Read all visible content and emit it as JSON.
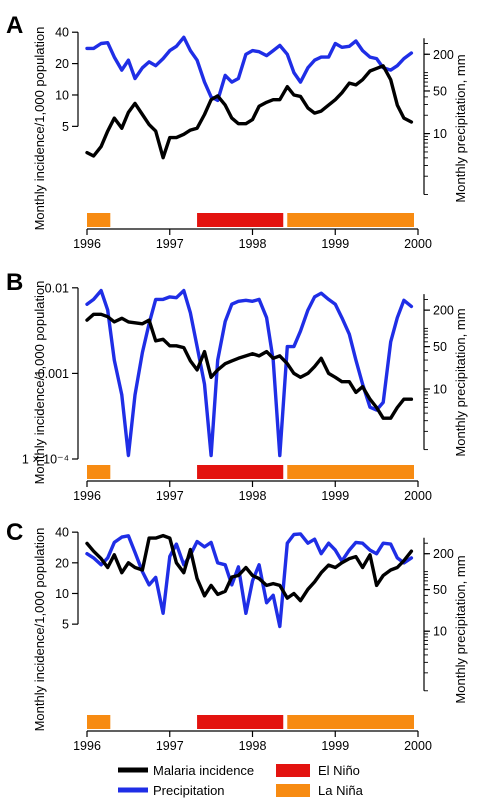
{
  "colors": {
    "malaria": "#000000",
    "precipitation": "#1f2ee6",
    "el_nino": "#e3130f",
    "la_nina": "#f78b12"
  },
  "legend": {
    "malaria": "Malaria incidence",
    "precipitation": "Precipitation",
    "el_nino": "El Niño",
    "la_nina": "La Niña"
  },
  "chart_data": [
    {
      "type": "line",
      "panel": "A",
      "ylabel_left": "Monthly incidence/1,000 population",
      "ylabel_right": "Monthly precipitation, mm",
      "x_ticks": [
        "1996",
        "1997",
        "1998",
        "1999",
        "2000"
      ],
      "y_left_ticks": [
        {
          "value": 5,
          "label": "5"
        },
        {
          "value": 10,
          "label": "10"
        },
        {
          "value": 20,
          "label": "20"
        },
        {
          "value": 40,
          "label": "40"
        }
      ],
      "y_right_ticks": [
        {
          "value": 10,
          "label": "10"
        },
        {
          "value": 50,
          "label": "50"
        },
        {
          "value": 200,
          "label": "200"
        }
      ],
      "y_left_scale": "log",
      "y_left_lim": [
        0.9,
        42
      ],
      "y_right_scale": "log",
      "y_right_lim": [
        0.7,
        500
      ],
      "xlim": [
        1996,
        2000
      ],
      "series": [
        {
          "name": "Malaria incidence",
          "axis": "left",
          "x": [
            1996.0,
            1996.08,
            1996.17,
            1996.25,
            1996.33,
            1996.42,
            1996.5,
            1996.58,
            1996.67,
            1996.75,
            1996.83,
            1996.92,
            1997.0,
            1997.08,
            1997.17,
            1997.25,
            1997.33,
            1997.42,
            1997.5,
            1997.58,
            1997.67,
            1997.75,
            1997.83,
            1997.92,
            1998.0,
            1998.08,
            1998.17,
            1998.25,
            1998.33,
            1998.42,
            1998.5,
            1998.58,
            1998.67,
            1998.75,
            1998.83,
            1998.92,
            1999.0,
            1999.08,
            1999.17,
            1999.25,
            1999.33,
            1999.42,
            1999.5,
            1999.58,
            1999.67,
            1999.75,
            1999.83,
            1999.92
          ],
          "y": [
            2.8,
            2.6,
            3.2,
            4.5,
            6.0,
            4.8,
            6.8,
            8.3,
            6.5,
            5.2,
            4.5,
            2.5,
            3.9,
            3.9,
            4.2,
            4.6,
            4.8,
            6.5,
            9.0,
            9.8,
            8.0,
            6.0,
            5.3,
            5.3,
            5.8,
            7.8,
            8.5,
            9.0,
            9.0,
            12.0,
            10.0,
            9.7,
            7.5,
            6.7,
            7.0,
            8.0,
            9.0,
            10.5,
            13.0,
            12.5,
            14.0,
            17.0,
            18.0,
            19.0,
            14.0,
            8.0,
            6.0,
            5.5
          ]
        },
        {
          "name": "Precipitation",
          "axis": "right",
          "x": [
            1996.0,
            1996.08,
            1996.17,
            1996.25,
            1996.33,
            1996.42,
            1996.5,
            1996.58,
            1996.67,
            1996.75,
            1996.83,
            1996.92,
            1997.0,
            1997.08,
            1997.17,
            1997.25,
            1997.33,
            1997.42,
            1997.5,
            1997.58,
            1997.67,
            1997.75,
            1997.83,
            1997.92,
            1998.0,
            1998.08,
            1998.17,
            1998.25,
            1998.33,
            1998.42,
            1998.5,
            1998.58,
            1998.67,
            1998.75,
            1998.83,
            1998.92,
            1999.0,
            1999.08,
            1999.17,
            1999.25,
            1999.33,
            1999.42,
            1999.5,
            1999.58,
            1999.67,
            1999.75,
            1999.83,
            1999.92
          ],
          "y": [
            250,
            250,
            300,
            310,
            180,
            110,
            160,
            80,
            120,
            150,
            130,
            170,
            230,
            270,
            380,
            230,
            160,
            70,
            40,
            35,
            90,
            70,
            80,
            200,
            230,
            220,
            190,
            230,
            280,
            200,
            100,
            70,
            120,
            160,
            180,
            180,
            300,
            260,
            270,
            330,
            230,
            180,
            170,
            120,
            110,
            130,
            170,
            210
          ]
        }
      ],
      "enso_periods": [
        {
          "phase": "La Niña",
          "start": 1996.0,
          "end": 1996.33
        },
        {
          "phase": "El Niño",
          "start": 1997.33,
          "end": 1998.42
        },
        {
          "phase": "La Niña",
          "start": 1998.42,
          "end": 2000.0
        }
      ]
    },
    {
      "type": "line",
      "panel": "B",
      "ylabel_left": "Monthly incidence/1,000 population",
      "ylabel_right": "Monthly precipitation, mm",
      "x_ticks": [
        "1996",
        "1997",
        "1998",
        "1999",
        "2000"
      ],
      "y_left_ticks": [
        {
          "value": 0.0001,
          "label": "1 × 10⁻⁴"
        },
        {
          "value": 0.001,
          "label": "0.001"
        },
        {
          "value": 0.01,
          "label": "0.01"
        }
      ],
      "y_right_ticks": [
        {
          "value": 10,
          "label": "10"
        },
        {
          "value": 50,
          "label": "50"
        },
        {
          "value": 200,
          "label": "200"
        }
      ],
      "y_left_scale": "log",
      "y_left_lim": [
        0.0001,
        0.0105
      ],
      "y_right_scale": "log",
      "y_right_lim": [
        0.7,
        500
      ],
      "xlim": [
        1996,
        2000
      ],
      "series": [
        {
          "name": "Malaria incidence",
          "axis": "left",
          "x": [
            1996.0,
            1996.08,
            1996.17,
            1996.25,
            1996.33,
            1996.42,
            1996.5,
            1996.58,
            1996.67,
            1996.75,
            1996.83,
            1996.92,
            1997.0,
            1997.08,
            1997.17,
            1997.25,
            1997.33,
            1997.42,
            1997.5,
            1997.58,
            1997.67,
            1997.75,
            1997.83,
            1997.92,
            1998.0,
            1998.08,
            1998.17,
            1998.25,
            1998.33,
            1998.42,
            1998.5,
            1998.58,
            1998.67,
            1998.75,
            1998.83,
            1998.92,
            1999.0,
            1999.08,
            1999.17,
            1999.25,
            1999.33,
            1999.42,
            1999.5,
            1999.58,
            1999.67,
            1999.75,
            1999.83,
            1999.92
          ],
          "y": [
            0.0042,
            0.0049,
            0.0049,
            0.0046,
            0.004,
            0.0044,
            0.004,
            0.0039,
            0.0038,
            0.0042,
            0.0024,
            0.0025,
            0.0021,
            0.0021,
            0.002,
            0.0014,
            0.0011,
            0.0018,
            0.0009,
            0.0011,
            0.0013,
            0.0014,
            0.0015,
            0.0016,
            0.0017,
            0.0016,
            0.0018,
            0.0015,
            0.0016,
            0.0013,
            0.001,
            0.0009,
            0.001,
            0.0012,
            0.0015,
            0.001,
            0.0009,
            0.0008,
            0.0008,
            0.0006,
            0.0007,
            0.0005,
            0.0004,
            0.0003,
            0.0003,
            0.0004,
            0.0005,
            0.0005
          ]
        },
        {
          "name": "Precipitation",
          "axis": "right",
          "x": [
            1996.0,
            1996.08,
            1996.17,
            1996.25,
            1996.33,
            1996.42,
            1996.5,
            1996.58,
            1996.67,
            1996.75,
            1996.83,
            1996.92,
            1997.0,
            1997.08,
            1997.17,
            1997.25,
            1997.33,
            1997.42,
            1997.5,
            1997.58,
            1997.67,
            1997.75,
            1997.83,
            1997.92,
            1998.0,
            1998.08,
            1998.17,
            1998.25,
            1998.33,
            1998.42,
            1998.5,
            1998.58,
            1998.67,
            1998.75,
            1998.83,
            1998.92,
            1999.0,
            1999.08,
            1999.17,
            1999.25,
            1999.33,
            1999.42,
            1999.5,
            1999.58,
            1999.67,
            1999.75,
            1999.83,
            1999.92
          ],
          "y": [
            250,
            300,
            420,
            200,
            30,
            8,
            0.8,
            8,
            40,
            120,
            300,
            300,
            330,
            320,
            420,
            180,
            50,
            12,
            0.8,
            30,
            130,
            250,
            280,
            290,
            280,
            300,
            150,
            30,
            0.8,
            50,
            50,
            90,
            200,
            330,
            380,
            300,
            250,
            150,
            80,
            30,
            12,
            5,
            4.5,
            6,
            60,
            150,
            290,
            230
          ]
        }
      ],
      "enso_periods": [
        {
          "phase": "La Niña",
          "start": 1996.0,
          "end": 1996.33
        },
        {
          "phase": "El Niño",
          "start": 1997.33,
          "end": 1998.42
        },
        {
          "phase": "La Niña",
          "start": 1998.42,
          "end": 2000.0
        }
      ]
    },
    {
      "type": "line",
      "panel": "C",
      "ylabel_left": "Monthly incidence/1,000 population",
      "ylabel_right": "Monthly precipitation, mm",
      "x_ticks": [
        "1996",
        "1997",
        "1998",
        "1999",
        "2000"
      ],
      "y_left_ticks": [
        {
          "value": 5,
          "label": "5"
        },
        {
          "value": 10,
          "label": "10"
        },
        {
          "value": 20,
          "label": "20"
        },
        {
          "value": 40,
          "label": "40"
        }
      ],
      "y_right_ticks": [
        {
          "value": 10,
          "label": "10"
        },
        {
          "value": 50,
          "label": "50"
        },
        {
          "value": 200,
          "label": "200"
        }
      ],
      "y_left_scale": "log",
      "y_left_lim": [
        0.9,
        42
      ],
      "y_right_scale": "log",
      "y_right_lim": [
        0.7,
        500
      ],
      "xlim": [
        1996,
        2000
      ],
      "series": [
        {
          "name": "Malaria incidence",
          "axis": "left",
          "x": [
            1996.0,
            1996.08,
            1996.17,
            1996.25,
            1996.33,
            1996.42,
            1996.5,
            1996.58,
            1996.67,
            1996.75,
            1996.83,
            1996.92,
            1997.0,
            1997.08,
            1997.17,
            1997.25,
            1997.33,
            1997.42,
            1997.5,
            1997.58,
            1997.67,
            1997.75,
            1997.83,
            1997.92,
            1998.0,
            1998.08,
            1998.17,
            1998.25,
            1998.33,
            1998.42,
            1998.5,
            1998.58,
            1998.67,
            1998.75,
            1998.83,
            1998.92,
            1999.0,
            1999.08,
            1999.17,
            1999.25,
            1999.33,
            1999.42,
            1999.5,
            1999.58,
            1999.67,
            1999.75,
            1999.83,
            1999.92
          ],
          "y": [
            31,
            26,
            22,
            18,
            24,
            16,
            20,
            18,
            17,
            35,
            35,
            37,
            35,
            20,
            16,
            27,
            14,
            9.5,
            12,
            9.8,
            10.5,
            14.5,
            15,
            18,
            15,
            14,
            12,
            12.5,
            12,
            9,
            10,
            8.5,
            11,
            13,
            16,
            19,
            18,
            20,
            22,
            23,
            18,
            24,
            12,
            15,
            17,
            18,
            21,
            26
          ]
        },
        {
          "name": "Precipitation",
          "axis": "right",
          "x": [
            1996.0,
            1996.08,
            1996.17,
            1996.25,
            1996.33,
            1996.42,
            1996.5,
            1996.58,
            1996.67,
            1996.75,
            1996.83,
            1996.92,
            1997.0,
            1997.08,
            1997.17,
            1997.25,
            1997.33,
            1997.42,
            1997.5,
            1997.58,
            1997.67,
            1997.75,
            1997.83,
            1997.92,
            1998.0,
            1998.08,
            1998.17,
            1998.25,
            1998.33,
            1998.42,
            1998.5,
            1998.58,
            1998.67,
            1998.75,
            1998.83,
            1998.92,
            1999.0,
            1999.08,
            1999.17,
            1999.25,
            1999.33,
            1999.42,
            1999.5,
            1999.58,
            1999.67,
            1999.75,
            1999.83,
            1999.92
          ],
          "y": [
            200,
            170,
            130,
            170,
            310,
            380,
            400,
            210,
            100,
            60,
            80,
            20,
            180,
            290,
            130,
            190,
            320,
            260,
            310,
            140,
            130,
            60,
            120,
            20,
            70,
            130,
            30,
            40,
            12,
            300,
            420,
            430,
            300,
            350,
            200,
            300,
            230,
            150,
            230,
            310,
            300,
            230,
            200,
            300,
            290,
            170,
            140,
            170
          ]
        }
      ],
      "enso_periods": [
        {
          "phase": "La Niña",
          "start": 1996.0,
          "end": 1996.33
        },
        {
          "phase": "El Niño",
          "start": 1997.33,
          "end": 1998.42
        },
        {
          "phase": "La Niña",
          "start": 1998.42,
          "end": 2000.0
        }
      ]
    }
  ]
}
